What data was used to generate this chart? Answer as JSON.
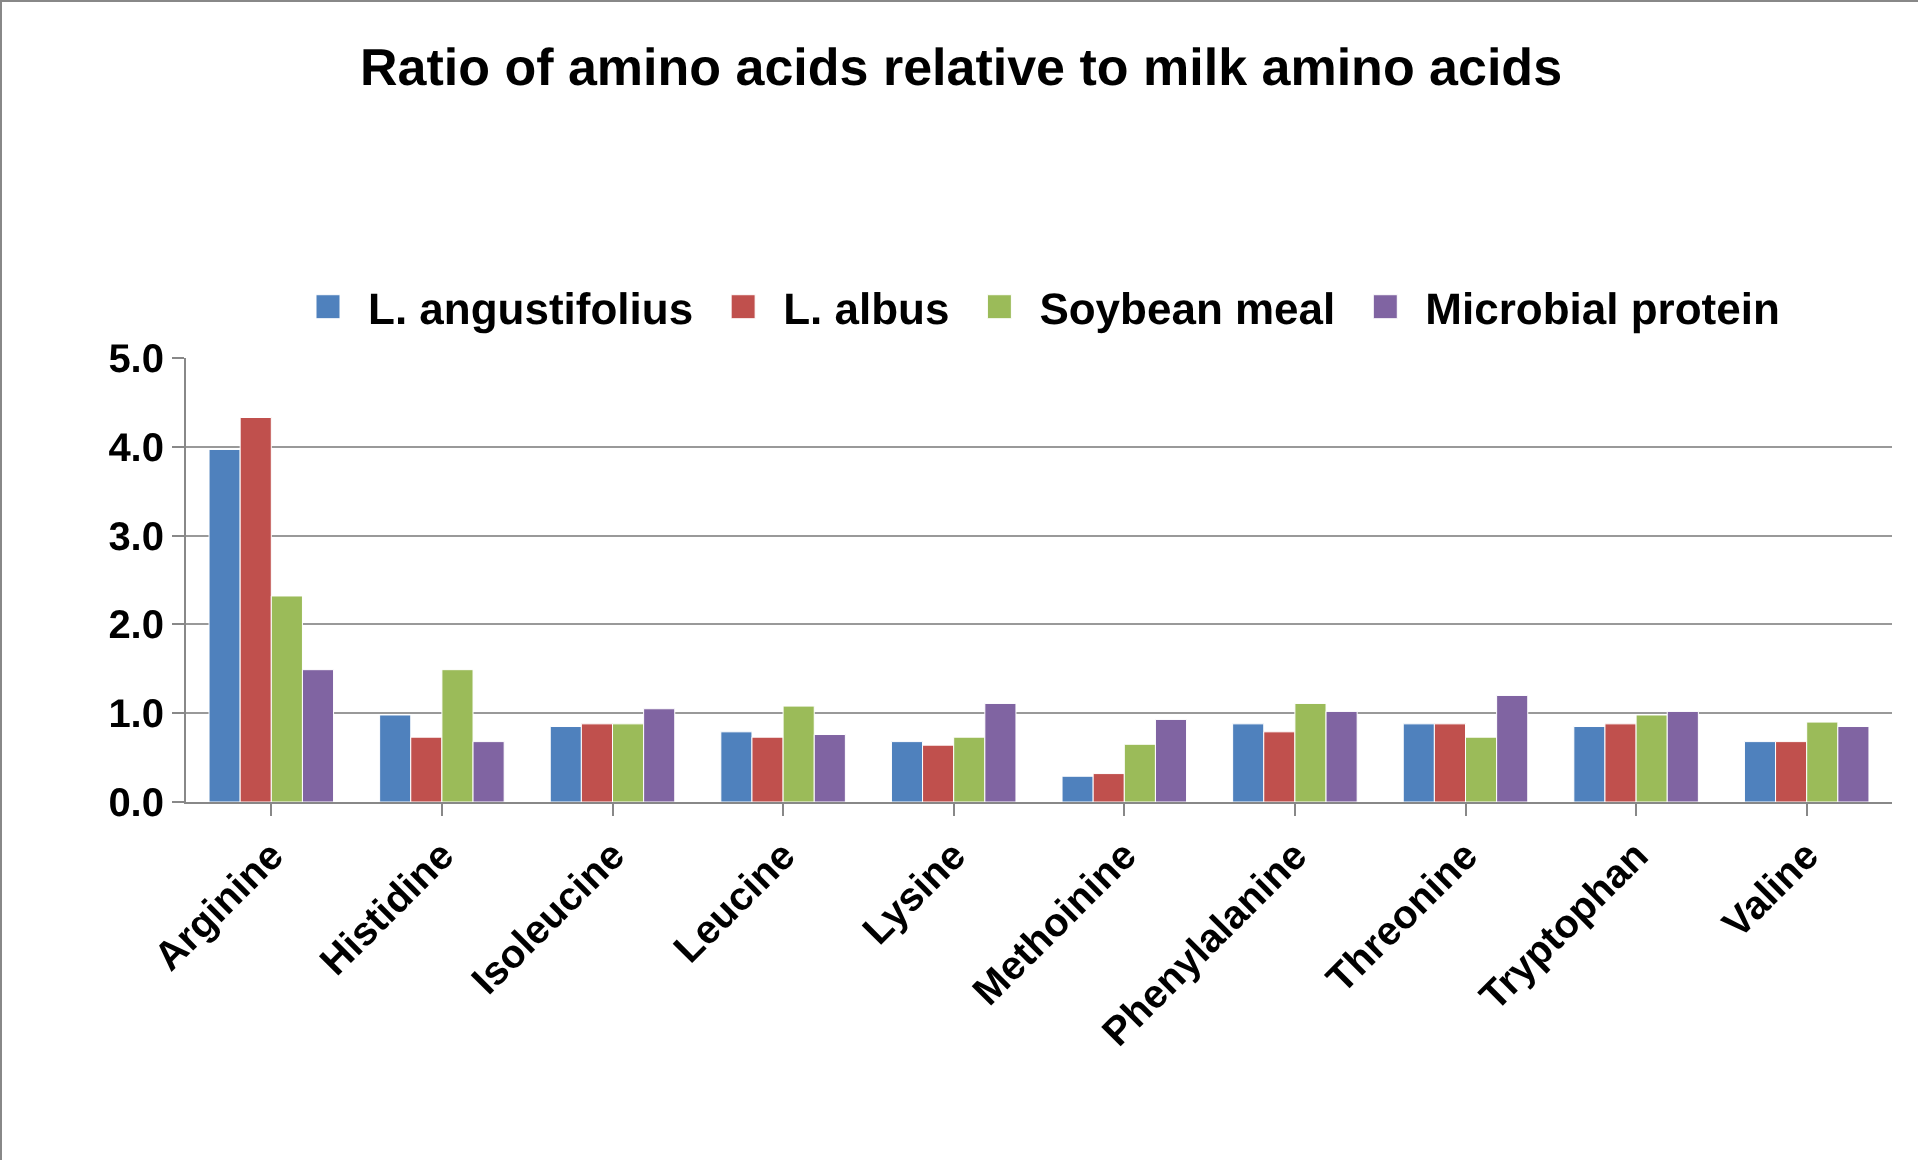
{
  "chart_data": {
    "type": "bar",
    "title": "Ratio of amino acids relative to milk amino acids",
    "categories": [
      "Arginine",
      "Histidine",
      "Isoleucine",
      "Leucine",
      "Lysine",
      "Methoinine",
      "Phenylalanine",
      "Threonine",
      "Tryptophan",
      "Valine"
    ],
    "series": [
      {
        "name": "L. angustifolius",
        "color": "#4f81bd",
        "values": [
          3.97,
          0.98,
          0.85,
          0.79,
          0.68,
          0.29,
          0.88,
          0.88,
          0.85,
          0.68
        ]
      },
      {
        "name": "L. albus",
        "color": "#c0504d",
        "values": [
          4.33,
          0.73,
          0.88,
          0.73,
          0.64,
          0.32,
          0.79,
          0.88,
          0.88,
          0.68
        ]
      },
      {
        "name": "Soybean meal",
        "color": "#9bbb59",
        "values": [
          2.32,
          1.49,
          0.88,
          1.08,
          0.73,
          0.65,
          1.11,
          0.73,
          0.98,
          0.9
        ]
      },
      {
        "name": "Microbial protein",
        "color": "#8064a2",
        "values": [
          1.49,
          0.68,
          1.05,
          0.76,
          1.11,
          0.93,
          1.02,
          1.2,
          1.02,
          0.85
        ]
      }
    ],
    "ylim": [
      0,
      5
    ],
    "yticks": [
      {
        "value": 0,
        "label": "0.0"
      },
      {
        "value": 1,
        "label": "1.0"
      },
      {
        "value": 2,
        "label": "2.0"
      },
      {
        "value": 3,
        "label": "3.0"
      },
      {
        "value": 4,
        "label": "4.0"
      },
      {
        "value": 5,
        "label": "5.0"
      }
    ],
    "grid": "y",
    "legend": "top"
  }
}
